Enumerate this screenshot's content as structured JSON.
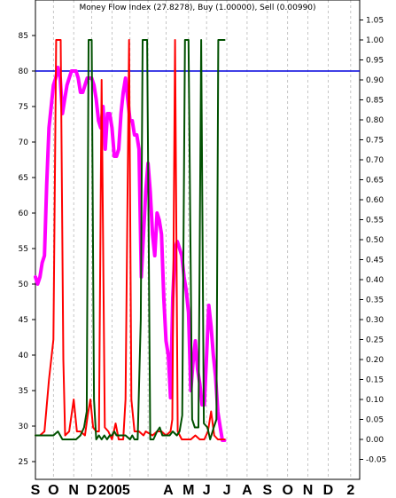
{
  "chart_data": {
    "type": "line",
    "title": "Money Flow Index (27.8278), Buy (1.00000), Sell (0.00990)",
    "left_axis": {
      "range": [
        22.5,
        90
      ],
      "ticks": [
        25,
        30,
        35,
        40,
        45,
        50,
        55,
        60,
        65,
        70,
        75,
        80,
        85
      ]
    },
    "right_axis": {
      "range": [
        -0.1,
        1.1
      ],
      "ticks": [
        "-0.05",
        "0.00",
        "0.05",
        "0.10",
        "0.15",
        "0.20",
        "0.25",
        "0.30",
        "0.35",
        "0.40",
        "0.45",
        "0.50",
        "0.55",
        "0.60",
        "0.65",
        "0.70",
        "0.75",
        "0.80",
        "0.85",
        "0.90",
        "0.95",
        "1.00",
        "1.05"
      ]
    },
    "x_range": [
      0,
      72
    ],
    "x_labels": [
      {
        "label": "S",
        "x": 0
      },
      {
        "label": "O",
        "x": 4
      },
      {
        "label": "N",
        "x": 8.5
      },
      {
        "label": "D",
        "x": 12.5
      },
      {
        "label": "2005",
        "x": 17.5
      },
      {
        "label": "A",
        "x": 29.5
      },
      {
        "label": "M",
        "x": 34
      },
      {
        "label": "J",
        "x": 38
      },
      {
        "label": "J",
        "x": 42.5
      },
      {
        "label": "A",
        "x": 47
      },
      {
        "label": "S",
        "x": 51.5
      },
      {
        "label": "O",
        "x": 56
      },
      {
        "label": "N",
        "x": 60.5
      },
      {
        "label": "D",
        "x": 65
      },
      {
        "label": "2",
        "x": 70
      }
    ],
    "grid_x": [
      4,
      8.5,
      12.5,
      17,
      21,
      25,
      29,
      34,
      38,
      42.5,
      47,
      51.5,
      56,
      60.5,
      65,
      70
    ],
    "reference_line": {
      "value": 80,
      "axis": "left",
      "color": "#0000dd"
    },
    "series": [
      {
        "axis": "left",
        "color": "#ff00ff",
        "width": 4,
        "points": [
          [
            0,
            51
          ],
          [
            0.5,
            50
          ],
          [
            1,
            51
          ],
          [
            1.5,
            53
          ],
          [
            2,
            54
          ],
          [
            2.5,
            64
          ],
          [
            3,
            72
          ],
          [
            3.5,
            75
          ],
          [
            4,
            78
          ],
          [
            4.5,
            79
          ],
          [
            5,
            80.5
          ],
          [
            5.5,
            79
          ],
          [
            6,
            74
          ],
          [
            6.5,
            76
          ],
          [
            7,
            78
          ],
          [
            7.5,
            79
          ],
          [
            8,
            80
          ],
          [
            8.5,
            80
          ],
          [
            9,
            80
          ],
          [
            9.5,
            79
          ],
          [
            10,
            77
          ],
          [
            10.5,
            77
          ],
          [
            11,
            78
          ],
          [
            11.5,
            79
          ],
          [
            12,
            79
          ],
          [
            12.5,
            79
          ],
          [
            13,
            78
          ],
          [
            13.5,
            76
          ],
          [
            14,
            73
          ],
          [
            14.5,
            72
          ],
          [
            15,
            75
          ],
          [
            15.5,
            69
          ],
          [
            16,
            74
          ],
          [
            16.5,
            74
          ],
          [
            17,
            72
          ],
          [
            17.5,
            68
          ],
          [
            18,
            68
          ],
          [
            18.5,
            69
          ],
          [
            19,
            74
          ],
          [
            19.5,
            77
          ],
          [
            20,
            79
          ],
          [
            20.5,
            76
          ],
          [
            21,
            73
          ],
          [
            21.5,
            73
          ],
          [
            22,
            71
          ],
          [
            22.5,
            71
          ],
          [
            23,
            69
          ],
          [
            23.5,
            51
          ],
          [
            24,
            57
          ],
          [
            24.5,
            63
          ],
          [
            25,
            67
          ],
          [
            25.5,
            63
          ],
          [
            26,
            57
          ],
          [
            26.5,
            54
          ],
          [
            27,
            60
          ],
          [
            27.5,
            59
          ],
          [
            28,
            57
          ],
          [
            28.5,
            48
          ],
          [
            29,
            42
          ],
          [
            29.5,
            40
          ],
          [
            30,
            34
          ],
          [
            30.5,
            48
          ],
          [
            31,
            55
          ],
          [
            31.5,
            56
          ],
          [
            32,
            55
          ],
          [
            32.5,
            54
          ],
          [
            33,
            51
          ],
          [
            33.5,
            49
          ],
          [
            34,
            46
          ],
          [
            34.5,
            35
          ],
          [
            35,
            39
          ],
          [
            35.5,
            42
          ],
          [
            36,
            38
          ],
          [
            36.5,
            36
          ],
          [
            37,
            33
          ],
          [
            37.5,
            33
          ],
          [
            38,
            40
          ],
          [
            38.5,
            47
          ],
          [
            39,
            44
          ],
          [
            39.5,
            40
          ],
          [
            40,
            37
          ],
          [
            40.5,
            32
          ],
          [
            41,
            30
          ],
          [
            41.5,
            28
          ],
          [
            42,
            28
          ]
        ]
      },
      {
        "axis": "right",
        "color": "#ff0000",
        "width": 2,
        "points": [
          [
            0,
            0.01
          ],
          [
            1,
            0.01
          ],
          [
            2,
            0.02
          ],
          [
            3,
            0.15
          ],
          [
            4,
            0.25
          ],
          [
            4.6,
            1.0
          ],
          [
            5.6,
            1.0
          ],
          [
            6.2,
            0.2
          ],
          [
            6.6,
            0.01
          ],
          [
            7.5,
            0.02
          ],
          [
            8.5,
            0.1
          ],
          [
            9.2,
            0.02
          ],
          [
            10,
            0.02
          ],
          [
            11,
            0.01
          ],
          [
            11.6,
            0.06
          ],
          [
            12.2,
            0.1
          ],
          [
            12.8,
            0.03
          ],
          [
            13.5,
            0.02
          ],
          [
            14.1,
            0.02
          ],
          [
            14.7,
            0.9
          ],
          [
            15.4,
            0.03
          ],
          [
            16.2,
            0.02
          ],
          [
            17,
            0.0
          ],
          [
            17.8,
            0.04
          ],
          [
            18.5,
            0.0
          ],
          [
            19.5,
            0.0
          ],
          [
            20,
            0.1
          ],
          [
            20.8,
            1.0
          ],
          [
            21.3,
            0.1
          ],
          [
            22,
            0.02
          ],
          [
            23,
            0.02
          ],
          [
            24,
            0.01
          ],
          [
            24.5,
            0.02
          ],
          [
            26,
            0.01
          ],
          [
            27,
            0.02
          ],
          [
            28,
            0.02
          ],
          [
            29,
            0.01
          ],
          [
            30,
            0.02
          ],
          [
            30.4,
            0.05
          ],
          [
            31,
            1.0
          ],
          [
            31.6,
            0.02
          ],
          [
            32.5,
            0.0
          ],
          [
            33.5,
            0.0
          ],
          [
            34.5,
            0.0
          ],
          [
            35.5,
            0.01
          ],
          [
            36.5,
            0.0
          ],
          [
            37.5,
            0.0
          ],
          [
            38.3,
            0.02
          ],
          [
            39,
            0.07
          ],
          [
            39.7,
            0.01
          ],
          [
            40.5,
            0.0
          ],
          [
            41,
            0.0
          ],
          [
            42,
            0.0
          ]
        ]
      },
      {
        "axis": "right",
        "color": "#005000",
        "width": 2,
        "points": [
          [
            0,
            0.01
          ],
          [
            2,
            0.01
          ],
          [
            3,
            0.01
          ],
          [
            4,
            0.01
          ],
          [
            5,
            0.02
          ],
          [
            6,
            0.0
          ],
          [
            7,
            0.0
          ],
          [
            8,
            0.0
          ],
          [
            9,
            0.0
          ],
          [
            10,
            0.01
          ],
          [
            10.8,
            0.03
          ],
          [
            11.4,
            0.07
          ],
          [
            11.8,
            1.0
          ],
          [
            12.5,
            1.0
          ],
          [
            13,
            0.1
          ],
          [
            13.5,
            0.0
          ],
          [
            14.1,
            0.01
          ],
          [
            14.7,
            0.0
          ],
          [
            15.3,
            0.01
          ],
          [
            15.9,
            0.0
          ],
          [
            16.5,
            0.01
          ],
          [
            17,
            0.01
          ],
          [
            17.5,
            0.02
          ],
          [
            18,
            0.01
          ],
          [
            19,
            0.01
          ],
          [
            20,
            0.01
          ],
          [
            21,
            0.0
          ],
          [
            21.5,
            0.01
          ],
          [
            22,
            0.0
          ],
          [
            22.7,
            0.0
          ],
          [
            23.4,
            0.3
          ],
          [
            23.8,
            1.0
          ],
          [
            24.8,
            1.0
          ],
          [
            25.5,
            0.0
          ],
          [
            26.2,
            0.0
          ],
          [
            27,
            0.02
          ],
          [
            27.6,
            0.03
          ],
          [
            28.2,
            0.01
          ],
          [
            29,
            0.01
          ],
          [
            29.8,
            0.01
          ],
          [
            30.5,
            0.02
          ],
          [
            31.4,
            0.01
          ],
          [
            32,
            0.02
          ],
          [
            32.6,
            0.06
          ],
          [
            33.2,
            1.0
          ],
          [
            34,
            1.0
          ],
          [
            34.8,
            0.05
          ],
          [
            35.4,
            0.03
          ],
          [
            36.2,
            0.03
          ],
          [
            36.8,
            1.0
          ],
          [
            37.4,
            0.04
          ],
          [
            38.2,
            0.03
          ],
          [
            38.8,
            0.0
          ],
          [
            39.6,
            0.03
          ],
          [
            40.2,
            0.05
          ],
          [
            40.6,
            1.0
          ],
          [
            41.3,
            1.0
          ],
          [
            42,
            1.0
          ]
        ]
      }
    ]
  }
}
